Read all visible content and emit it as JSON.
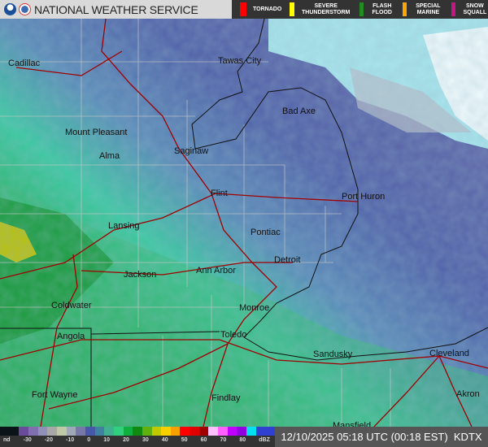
{
  "header": {
    "title": "NATIONAL WEATHER SERVICE",
    "logos": [
      "noaa-logo",
      "nws-logo"
    ]
  },
  "warnings": [
    {
      "label": "TORNADO",
      "color": "#ff0000"
    },
    {
      "label": "SEVERE THUNDERSTORM",
      "color": "#ffff00"
    },
    {
      "label": "FLASH FLOOD",
      "color": "#228b22"
    },
    {
      "label": "SPECIAL MARINE",
      "color": "#ffa500"
    },
    {
      "label": "SNOW SQUALL",
      "color": "#c71585"
    }
  ],
  "cities": [
    "Cadillac",
    "Tawas City",
    "Bad Axe",
    "Mount Pleasant",
    "Alma",
    "Saginaw",
    "Flint",
    "Port Huron",
    "Lansing",
    "Pontiac",
    "Detroit",
    "Jackson",
    "Ann Arbor",
    "Coldwater",
    "Monroe",
    "Angola",
    "Toledo",
    "Sandusky",
    "Cleveland",
    "Fort Wayne",
    "Findlay",
    "Akron",
    "Mansfield"
  ],
  "legend": {
    "ticks": [
      "nd",
      "-30",
      "-20",
      "-10",
      "0",
      "10",
      "20",
      "30",
      "40",
      "50",
      "60",
      "70",
      "80",
      "dBZ"
    ],
    "colors": [
      "#0a1418",
      "#0a1418",
      "#6a4a9a",
      "#8070b0",
      "#9090b8",
      "#a8a8a8",
      "#c0c8a8",
      "#a0a8b8",
      "#7878a8",
      "#4858a8",
      "#4080a0",
      "#40b090",
      "#30d080",
      "#10b040",
      "#108a10",
      "#60b010",
      "#c0c800",
      "#f8d000",
      "#f8a000",
      "#ff0000",
      "#e00000",
      "#a00000",
      "#ffc0ff",
      "#ff60ff",
      "#c000ff",
      "#9000e0",
      "#00e0f0",
      "#3040d0",
      "#3040d0"
    ]
  },
  "timestamp": "12/10/2025 05:18 UTC (00:18 EST)",
  "station": "KDTX"
}
